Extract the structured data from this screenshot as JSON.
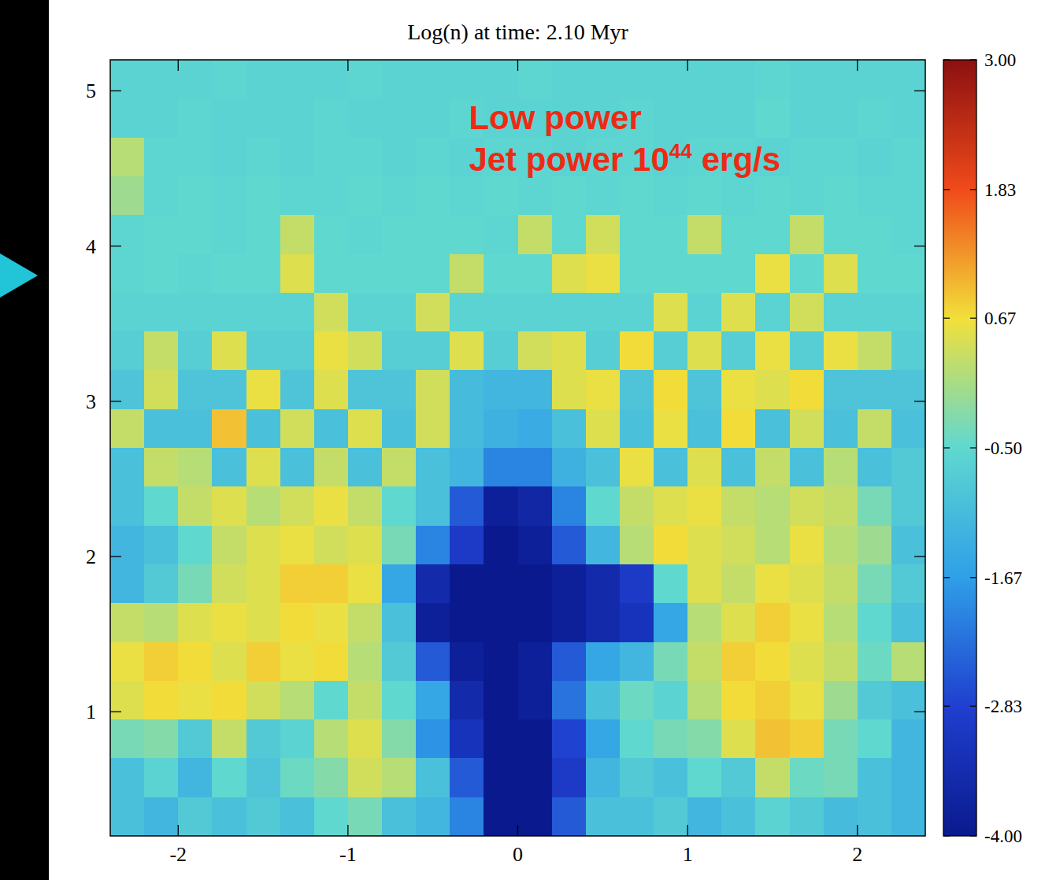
{
  "chart_data": {
    "type": "heatmap",
    "title": "Log(n) at time: 2.10 Myr",
    "annotation": {
      "line1": "Low power",
      "line2": "Jet power 10",
      "exponent": "44",
      "unit": "erg/s"
    },
    "xlim": [
      -2.4,
      2.4
    ],
    "ylim": [
      0.2,
      5.2
    ],
    "xticks": [
      -2,
      -1,
      0,
      1,
      2
    ],
    "yticks": [
      1,
      2,
      3,
      4,
      5
    ],
    "x": [
      -2.3,
      -2.1,
      -1.9,
      -1.7,
      -1.5,
      -1.3,
      -1.1,
      -0.9,
      -0.7,
      -0.5,
      -0.3,
      -0.1,
      0.1,
      0.3,
      0.5,
      0.7,
      0.9,
      1.1,
      1.3,
      1.5,
      1.7,
      1.9,
      2.1,
      2.3
    ],
    "y": [
      5.075,
      4.825,
      4.575,
      4.325,
      4.075,
      3.825,
      3.575,
      3.325,
      3.075,
      2.825,
      2.575,
      2.325,
      2.075,
      1.825,
      1.575,
      1.325,
      1.075,
      0.825,
      0.575,
      0.325
    ],
    "values": [
      [
        -0.6,
        -0.6,
        -0.6,
        -0.55,
        -0.6,
        -0.6,
        -0.6,
        -0.55,
        -0.6,
        -0.6,
        -0.6,
        -0.6,
        -0.55,
        -0.6,
        -0.6,
        -0.6,
        -0.6,
        -0.6,
        -0.6,
        -0.55,
        -0.6,
        -0.6,
        -0.6,
        -0.6
      ],
      [
        -0.6,
        -0.6,
        -0.55,
        -0.6,
        -0.6,
        -0.6,
        -0.55,
        -0.6,
        -0.6,
        -0.6,
        -0.55,
        -0.6,
        -0.6,
        -0.6,
        -0.6,
        -0.55,
        -0.6,
        -0.6,
        -0.6,
        -0.5,
        -0.6,
        -0.6,
        -0.55,
        -0.6
      ],
      [
        0.2,
        -0.55,
        -0.55,
        -0.6,
        -0.55,
        -0.6,
        -0.55,
        -0.55,
        -0.6,
        -0.55,
        -0.6,
        -0.55,
        -0.55,
        -0.6,
        -0.55,
        -0.55,
        -0.6,
        -0.55,
        -0.55,
        -0.6,
        -0.55,
        -0.55,
        -0.6,
        -0.55
      ],
      [
        0.0,
        -0.55,
        -0.5,
        -0.55,
        -0.5,
        -0.55,
        -0.55,
        -0.5,
        -0.55,
        -0.5,
        -0.55,
        -0.5,
        -0.55,
        -0.5,
        -0.55,
        -0.5,
        -0.55,
        -0.5,
        -0.55,
        -0.5,
        -0.55,
        -0.5,
        -0.55,
        -0.55
      ],
      [
        -0.55,
        -0.5,
        -0.5,
        -0.55,
        -0.5,
        0.3,
        -0.5,
        -0.55,
        -0.5,
        -0.5,
        -0.5,
        -0.55,
        0.3,
        -0.5,
        0.4,
        -0.5,
        -0.5,
        0.3,
        -0.5,
        -0.5,
        0.3,
        -0.5,
        -0.5,
        -0.55
      ],
      [
        -0.55,
        -0.5,
        -0.55,
        -0.5,
        -0.5,
        0.5,
        -0.5,
        -0.5,
        -0.5,
        -0.5,
        0.3,
        -0.5,
        -0.5,
        0.5,
        0.6,
        -0.5,
        -0.5,
        -0.5,
        -0.5,
        0.6,
        -0.5,
        0.5,
        -0.5,
        -0.5
      ],
      [
        -0.6,
        -0.6,
        -0.6,
        -0.6,
        -0.6,
        -0.6,
        0.4,
        -0.6,
        -0.6,
        0.4,
        -0.6,
        -0.6,
        -0.6,
        -0.6,
        -0.6,
        -0.6,
        0.5,
        -0.6,
        0.5,
        -0.6,
        0.4,
        -0.6,
        -0.6,
        -0.6
      ],
      [
        -0.7,
        0.3,
        -0.7,
        0.5,
        -0.7,
        -0.7,
        0.6,
        0.4,
        -0.7,
        -0.7,
        0.5,
        -0.7,
        0.4,
        0.5,
        -0.7,
        0.7,
        -0.7,
        0.5,
        -0.7,
        0.6,
        -0.7,
        0.6,
        0.3,
        -0.7
      ],
      [
        -0.9,
        0.4,
        -0.9,
        -0.9,
        0.6,
        -0.9,
        0.5,
        -0.9,
        -0.9,
        0.4,
        -1.1,
        -1.2,
        -1.2,
        0.5,
        0.6,
        -0.9,
        0.7,
        -0.9,
        0.6,
        0.5,
        0.7,
        -0.9,
        -0.9,
        -0.9
      ],
      [
        0.3,
        -1.0,
        -1.0,
        0.9,
        -1.0,
        0.4,
        -1.0,
        0.5,
        -1.0,
        0.4,
        -1.1,
        -1.3,
        -1.4,
        -1.0,
        0.5,
        -1.0,
        0.6,
        -1.0,
        0.7,
        -1.0,
        0.4,
        -1.0,
        0.3,
        -1.0
      ],
      [
        -1.0,
        0.3,
        0.2,
        -1.0,
        0.5,
        -1.0,
        0.3,
        -1.0,
        0.3,
        -1.0,
        -1.2,
        -2.0,
        -2.0,
        -1.3,
        -1.0,
        0.6,
        -1.0,
        0.5,
        -1.0,
        0.3,
        -1.0,
        0.2,
        -1.0,
        -0.8
      ],
      [
        -1.0,
        -0.5,
        0.3,
        0.5,
        0.2,
        0.4,
        0.6,
        0.3,
        -0.5,
        -1.0,
        -2.5,
        -3.8,
        -3.6,
        -2.0,
        -0.5,
        0.3,
        0.5,
        0.6,
        0.3,
        0.2,
        0.4,
        0.3,
        -0.3,
        -0.8
      ],
      [
        -1.2,
        -1.0,
        -0.5,
        0.3,
        0.5,
        0.6,
        0.4,
        0.5,
        -0.3,
        -2.0,
        -3.0,
        -4.0,
        -3.8,
        -2.5,
        -1.2,
        0.2,
        0.7,
        0.5,
        0.4,
        0.2,
        0.6,
        0.2,
        0.0,
        -1.0
      ],
      [
        -1.2,
        -0.8,
        -0.3,
        0.4,
        0.5,
        0.8,
        0.8,
        0.6,
        -1.5,
        -3.5,
        -4.0,
        -4.0,
        -4.0,
        -3.8,
        -3.5,
        -3.0,
        -0.5,
        0.5,
        0.3,
        0.6,
        0.5,
        0.3,
        -0.3,
        -0.8
      ],
      [
        0.3,
        0.2,
        0.5,
        0.6,
        0.5,
        0.7,
        0.6,
        0.3,
        -1.0,
        -3.8,
        -4.0,
        -4.0,
        -4.0,
        -3.8,
        -3.5,
        -3.2,
        -1.5,
        0.2,
        0.5,
        0.8,
        0.6,
        0.2,
        -0.5,
        -1.0
      ],
      [
        0.6,
        0.8,
        0.7,
        0.5,
        0.8,
        0.6,
        0.7,
        0.2,
        -0.8,
        -2.5,
        -3.8,
        -4.0,
        -3.8,
        -2.5,
        -1.5,
        -1.2,
        -0.3,
        0.3,
        0.8,
        0.7,
        0.5,
        0.3,
        -0.4,
        0.2
      ],
      [
        0.5,
        0.7,
        0.6,
        0.7,
        0.4,
        0.2,
        -0.5,
        0.3,
        -0.5,
        -1.5,
        -3.5,
        -4.0,
        -3.8,
        -2.2,
        -1.0,
        -0.4,
        -0.6,
        0.2,
        0.7,
        0.8,
        0.6,
        0.0,
        -0.8,
        -1.0
      ],
      [
        -0.3,
        -0.2,
        -0.8,
        0.3,
        -0.8,
        -0.6,
        0.2,
        0.5,
        -0.2,
        -1.8,
        -3.2,
        -4.0,
        -4.0,
        -2.8,
        -1.5,
        -0.5,
        -0.3,
        -0.2,
        0.5,
        0.9,
        0.8,
        -0.3,
        -0.5,
        -1.2
      ],
      [
        -1.0,
        -0.6,
        -1.2,
        -0.5,
        -0.9,
        -0.4,
        -0.2,
        0.4,
        0.2,
        -1.0,
        -2.5,
        -4.0,
        -4.0,
        -3.0,
        -1.2,
        -0.8,
        -1.0,
        -0.5,
        -0.8,
        0.3,
        -0.4,
        -0.3,
        -1.0,
        -1.2
      ],
      [
        -1.0,
        -1.2,
        -0.8,
        -1.0,
        -0.8,
        -1.0,
        -0.5,
        -0.3,
        -1.0,
        -1.2,
        -2.0,
        -4.0,
        -4.0,
        -2.5,
        -1.0,
        -1.0,
        -0.8,
        -1.2,
        -1.0,
        -0.6,
        -0.8,
        -1.1,
        -1.0,
        -1.2
      ]
    ],
    "color_range": [
      -4,
      3
    ],
    "color_ticks": [
      {
        "value": 3,
        "label": "3.00"
      },
      1.83,
      0.67,
      {
        "value": -0.5,
        "label": "-0.50"
      },
      -1.67,
      -2.83,
      {
        "value": -4,
        "label": "-4.00"
      }
    ]
  }
}
